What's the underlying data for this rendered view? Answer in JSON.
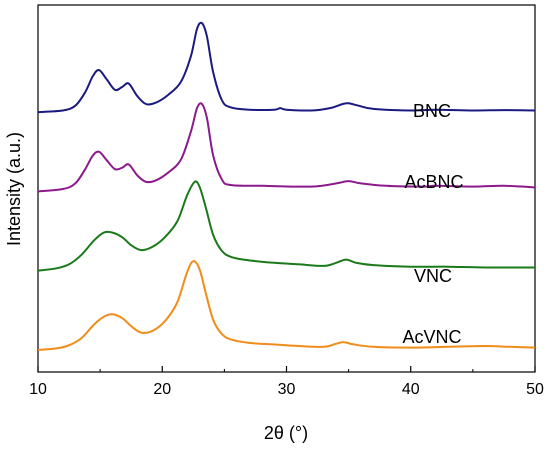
{
  "chart_data": {
    "type": "line",
    "xlabel": "2θ (°)",
    "ylabel": "Intensity (a.u.)",
    "xlim": [
      10,
      50
    ],
    "xticks": [
      10,
      20,
      30,
      40,
      50
    ],
    "y_ticks_shown": false,
    "grid": false,
    "legend": "inline labels beside each curve",
    "series": [
      {
        "name": "BNC",
        "color": "#1a1a80",
        "offset": 3.0,
        "points": [
          [
            10,
            0.0
          ],
          [
            12,
            0.02
          ],
          [
            13,
            0.08
          ],
          [
            13.8,
            0.25
          ],
          [
            14.4,
            0.45
          ],
          [
            14.9,
            0.53
          ],
          [
            15.5,
            0.42
          ],
          [
            16.2,
            0.28
          ],
          [
            16.8,
            0.32
          ],
          [
            17.3,
            0.36
          ],
          [
            18.0,
            0.2
          ],
          [
            18.7,
            0.1
          ],
          [
            19.5,
            0.12
          ],
          [
            20.5,
            0.22
          ],
          [
            21.5,
            0.38
          ],
          [
            22.3,
            0.7
          ],
          [
            22.8,
            1.05
          ],
          [
            23.2,
            1.12
          ],
          [
            23.6,
            0.95
          ],
          [
            24.1,
            0.5
          ],
          [
            24.8,
            0.15
          ],
          [
            25.5,
            0.06
          ],
          [
            27,
            0.03
          ],
          [
            29,
            0.03
          ],
          [
            29.5,
            0.05
          ],
          [
            30,
            0.03
          ],
          [
            32,
            0.02
          ],
          [
            33.5,
            0.05
          ],
          [
            34.5,
            0.1
          ],
          [
            35,
            0.11
          ],
          [
            35.8,
            0.08
          ],
          [
            37,
            0.04
          ],
          [
            40,
            0.02
          ],
          [
            42,
            0.03
          ],
          [
            45,
            0.02
          ],
          [
            47.5,
            0.025
          ],
          [
            50,
            0.02
          ]
        ]
      },
      {
        "name": "AcBNC",
        "color": "#8c1a8c",
        "offset": 2.0,
        "points": [
          [
            10,
            0.0
          ],
          [
            12,
            0.03
          ],
          [
            13,
            0.1
          ],
          [
            13.8,
            0.28
          ],
          [
            14.4,
            0.45
          ],
          [
            14.9,
            0.5
          ],
          [
            15.5,
            0.4
          ],
          [
            16.2,
            0.28
          ],
          [
            16.8,
            0.3
          ],
          [
            17.3,
            0.34
          ],
          [
            18.0,
            0.2
          ],
          [
            18.7,
            0.12
          ],
          [
            19.5,
            0.14
          ],
          [
            20.5,
            0.24
          ],
          [
            21.5,
            0.4
          ],
          [
            22.3,
            0.75
          ],
          [
            22.8,
            1.05
          ],
          [
            23.2,
            1.1
          ],
          [
            23.6,
            0.92
          ],
          [
            24.1,
            0.45
          ],
          [
            24.8,
            0.15
          ],
          [
            25.5,
            0.08
          ],
          [
            28,
            0.07
          ],
          [
            32,
            0.06
          ],
          [
            34,
            0.1
          ],
          [
            35,
            0.13
          ],
          [
            36,
            0.1
          ],
          [
            38,
            0.07
          ],
          [
            41,
            0.06
          ],
          [
            42,
            0.07
          ],
          [
            45,
            0.06
          ],
          [
            47.5,
            0.07
          ],
          [
            50,
            0.05
          ]
        ]
      },
      {
        "name": "VNC",
        "color": "#1a7a1a",
        "offset": 1.0,
        "points": [
          [
            10,
            0.0
          ],
          [
            11.5,
            0.03
          ],
          [
            12.5,
            0.08
          ],
          [
            13.5,
            0.2
          ],
          [
            14.5,
            0.38
          ],
          [
            15.3,
            0.48
          ],
          [
            16.0,
            0.48
          ],
          [
            16.8,
            0.42
          ],
          [
            17.5,
            0.32
          ],
          [
            18.3,
            0.26
          ],
          [
            19.2,
            0.3
          ],
          [
            20.2,
            0.42
          ],
          [
            21.2,
            0.62
          ],
          [
            22.0,
            0.95
          ],
          [
            22.6,
            1.12
          ],
          [
            23.0,
            1.06
          ],
          [
            23.5,
            0.8
          ],
          [
            24.1,
            0.45
          ],
          [
            24.8,
            0.25
          ],
          [
            25.6,
            0.17
          ],
          [
            27,
            0.13
          ],
          [
            29,
            0.1
          ],
          [
            31,
            0.08
          ],
          [
            33,
            0.06
          ],
          [
            34,
            0.1
          ],
          [
            34.8,
            0.14
          ],
          [
            35.6,
            0.1
          ],
          [
            37,
            0.07
          ],
          [
            40,
            0.05
          ],
          [
            43,
            0.05
          ],
          [
            46,
            0.04
          ],
          [
            50,
            0.04
          ]
        ]
      },
      {
        "name": "AcVNC",
        "color": "#f08c1a",
        "offset": 0.0,
        "points": [
          [
            10,
            0.0
          ],
          [
            11.5,
            0.02
          ],
          [
            12.5,
            0.06
          ],
          [
            13.5,
            0.15
          ],
          [
            14.5,
            0.32
          ],
          [
            15.3,
            0.42
          ],
          [
            16.0,
            0.45
          ],
          [
            16.8,
            0.4
          ],
          [
            17.5,
            0.3
          ],
          [
            18.3,
            0.22
          ],
          [
            19.2,
            0.24
          ],
          [
            20.2,
            0.36
          ],
          [
            21.2,
            0.6
          ],
          [
            22.0,
            0.98
          ],
          [
            22.5,
            1.12
          ],
          [
            23.0,
            1.02
          ],
          [
            23.5,
            0.72
          ],
          [
            24.1,
            0.38
          ],
          [
            24.8,
            0.2
          ],
          [
            25.6,
            0.13
          ],
          [
            27,
            0.09
          ],
          [
            29,
            0.07
          ],
          [
            31,
            0.05
          ],
          [
            33,
            0.04
          ],
          [
            34,
            0.08
          ],
          [
            34.6,
            0.1
          ],
          [
            35.4,
            0.07
          ],
          [
            37,
            0.04
          ],
          [
            40,
            0.03
          ],
          [
            43,
            0.04
          ],
          [
            46,
            0.05
          ],
          [
            48,
            0.04
          ],
          [
            50,
            0.03
          ]
        ]
      }
    ]
  }
}
